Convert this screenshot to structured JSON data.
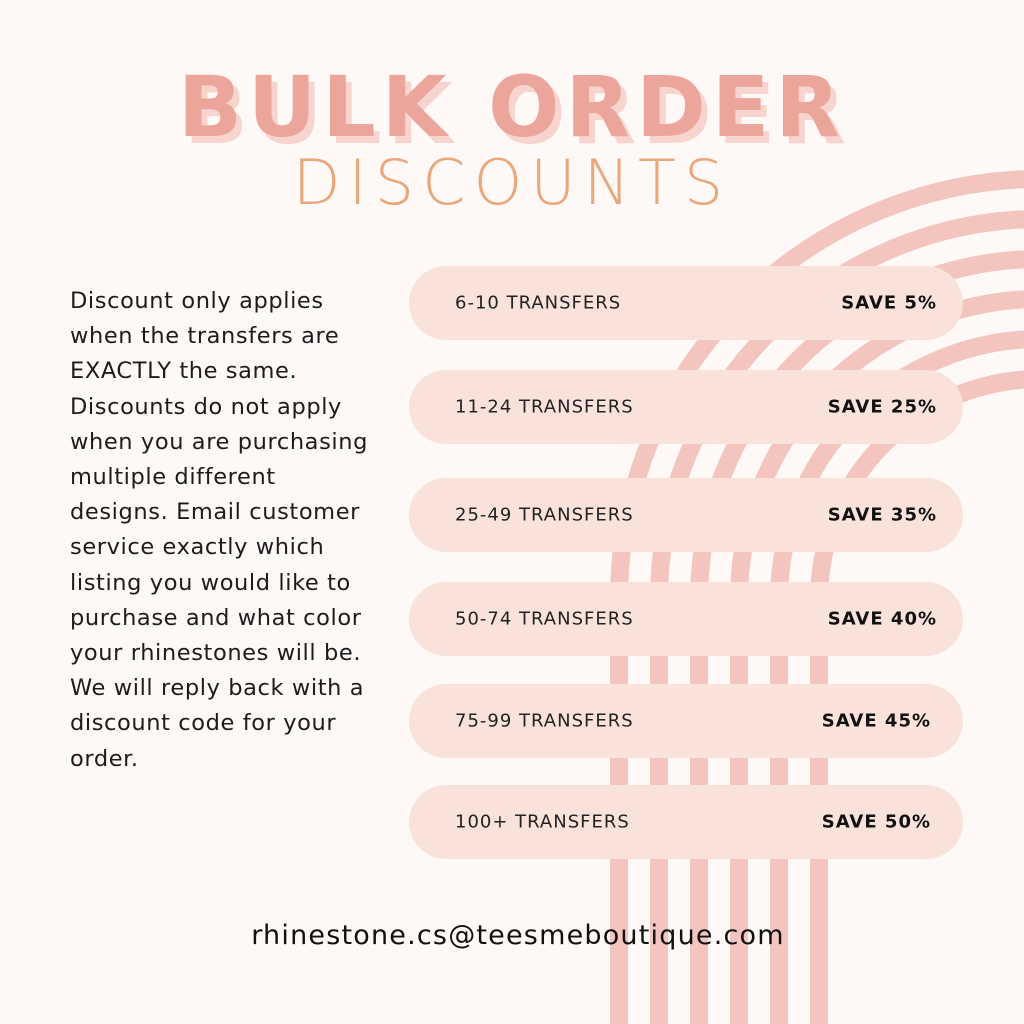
{
  "title": {
    "line1": "BULK ORDER",
    "line2": "DISCOUNTS"
  },
  "description": "Discount only applies when the transfers are EXACTLY the same. Discounts do not apply when you are purchasing multiple different designs. Email customer service exactly which listing you would like to purchase and what color your rhinestones will be. We will reply back with a discount code for your order.",
  "tiers": [
    {
      "quantity": "6-10 TRANSFERS",
      "discount": "SAVE 5%"
    },
    {
      "quantity": "11-24 TRANSFERS",
      "discount": "SAVE 25%"
    },
    {
      "quantity": "25-49 TRANSFERS",
      "discount": "SAVE 35%"
    },
    {
      "quantity": "50-74 TRANSFERS",
      "discount": "SAVE 40%"
    },
    {
      "quantity": "75-99 TRANSFERS",
      "discount": "SAVE 45%"
    },
    {
      "quantity": "100+ TRANSFERS",
      "discount": "SAVE 50%"
    }
  ],
  "email": "rhinestone.cs@teesmeboutique.com",
  "colors": {
    "background": "#fef8f7",
    "title": "#eca59a",
    "subtitle": "#e9a87c",
    "pill": "#f8e2d9",
    "arcs": "#f3c5be"
  }
}
